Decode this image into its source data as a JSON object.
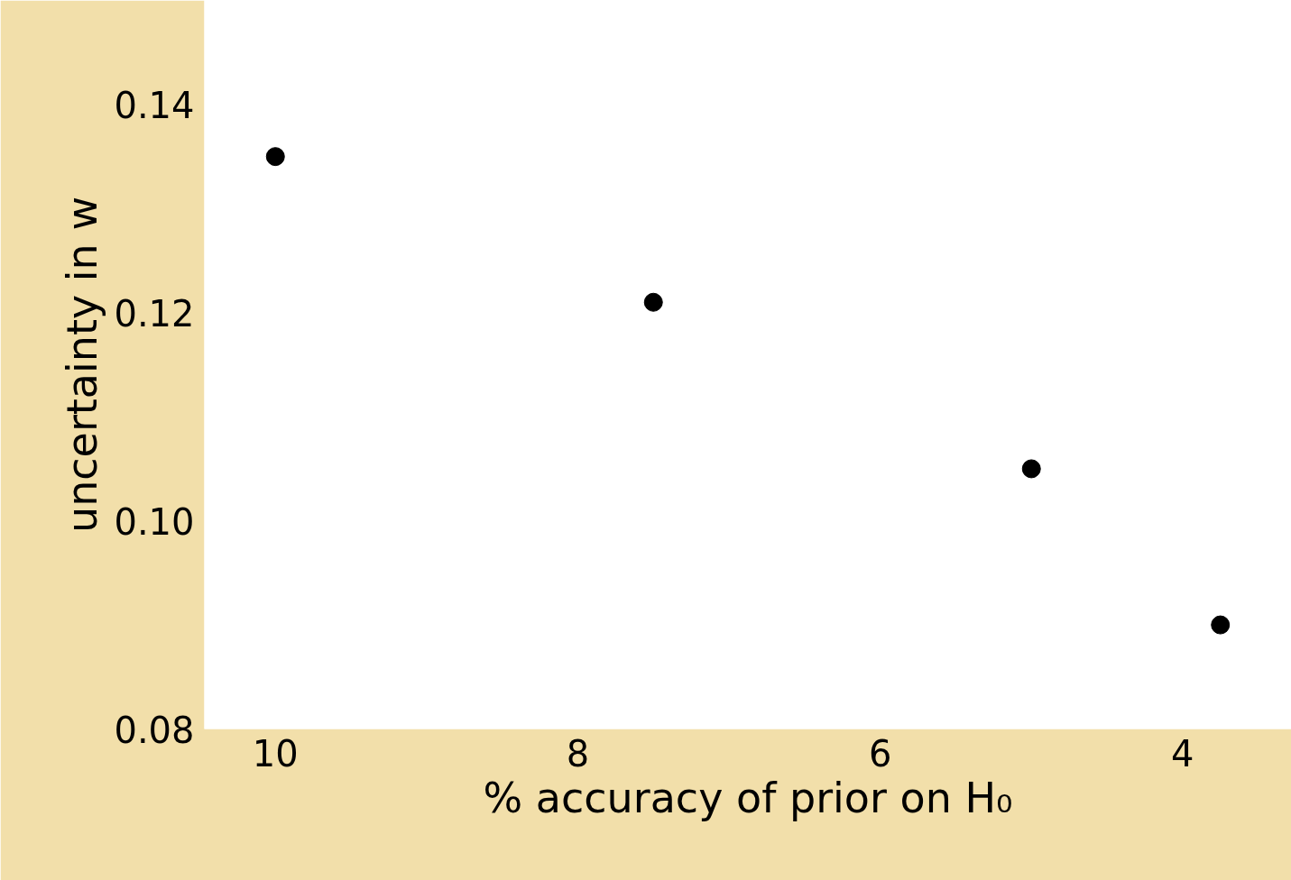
{
  "chart_data": {
    "type": "scatter",
    "xlabel": "% accuracy of prior on H₀",
    "ylabel": "uncertainty in w",
    "x": [
      10,
      7.5,
      5,
      3.75
    ],
    "series": [
      {
        "color": "#000000",
        "values": [
          0.135,
          0.121,
          0.105,
          0.09
        ]
      }
    ],
    "xlim": [
      10.47,
      3.28
    ],
    "ylim": [
      0.08,
      0.15
    ],
    "xticks": [
      10,
      8,
      6,
      4
    ],
    "yticks": [
      {
        "value": 0.08,
        "label": "0.08"
      },
      {
        "value": 0.1,
        "label": "0.10"
      },
      {
        "value": 0.12,
        "label": "0.12"
      },
      {
        "value": 0.14,
        "label": "0.14"
      }
    ],
    "grid": false,
    "marker": "circle"
  }
}
